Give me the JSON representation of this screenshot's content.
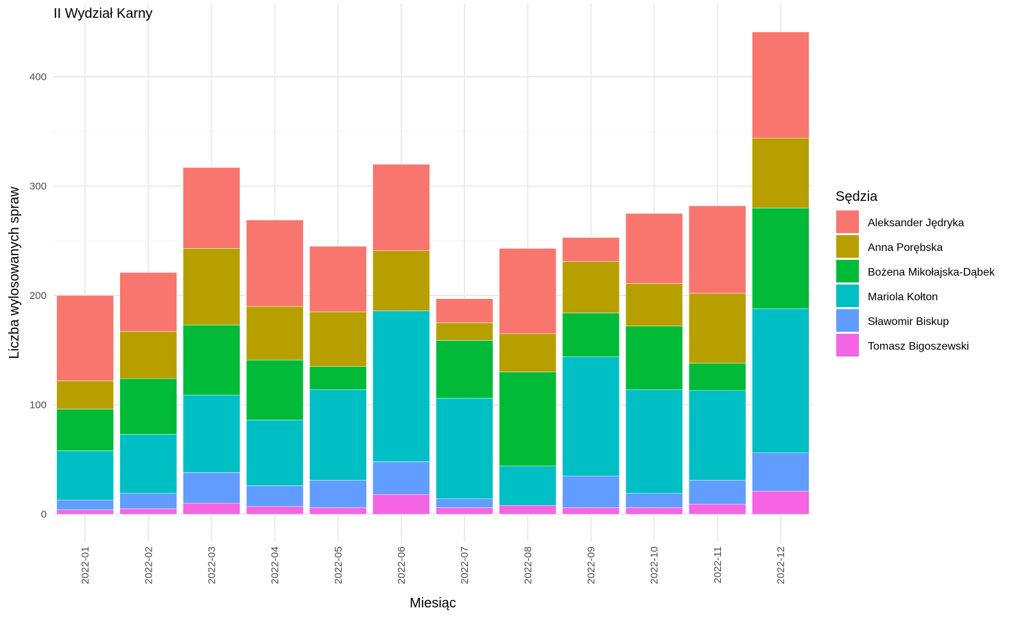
{
  "chart_data": {
    "type": "bar",
    "stacked": true,
    "title": "II Wydział Karny",
    "xlabel": "Miesiąc",
    "ylabel": "Liczba wylosowanych spraw",
    "ylim": [
      -20,
      442
    ],
    "yticks": [
      0,
      100,
      200,
      300,
      400
    ],
    "grid": true,
    "legend_position": "right",
    "legend_title": "Sędzia",
    "categories": [
      "2022-01",
      "2022-02",
      "2022-03",
      "2022-04",
      "2022-05",
      "2022-06",
      "2022-07",
      "2022-08",
      "2022-09",
      "2022-10",
      "2022-11",
      "2022-12"
    ],
    "series": [
      {
        "name": "Tomasz Bigoszewski",
        "color": "#F564E3",
        "values": [
          4,
          5,
          10,
          7,
          6,
          18,
          6,
          8,
          6,
          6,
          9,
          21
        ]
      },
      {
        "name": "Sławomir Biskup",
        "color": "#619CFF",
        "values": [
          9,
          14,
          28,
          19,
          25,
          30,
          8,
          0,
          29,
          13,
          22,
          35
        ]
      },
      {
        "name": "Mariola Kołton",
        "color": "#00BFC4",
        "values": [
          45,
          54,
          71,
          60,
          83,
          138,
          92,
          36,
          109,
          95,
          82,
          132
        ]
      },
      {
        "name": "Bożena Mikołajska-Dąbek",
        "color": "#00BA38",
        "values": [
          38,
          51,
          64,
          55,
          21,
          0,
          53,
          86,
          40,
          58,
          25,
          92
        ]
      },
      {
        "name": "Anna Porębska",
        "color": "#B79F00",
        "values": [
          26,
          43,
          70,
          49,
          50,
          55,
          16,
          35,
          47,
          39,
          64,
          64
        ]
      },
      {
        "name": "Aleksander Jędryka",
        "color": "#F8766D",
        "values": [
          78,
          54,
          74,
          79,
          60,
          79,
          22,
          78,
          22,
          64,
          80,
          97
        ]
      }
    ],
    "legend_order": [
      "Aleksander Jędryka",
      "Anna Porębska",
      "Bożena Mikołajska-Dąbek",
      "Mariola Kołton",
      "Sławomir Biskup",
      "Tomasz Bigoszewski"
    ]
  }
}
